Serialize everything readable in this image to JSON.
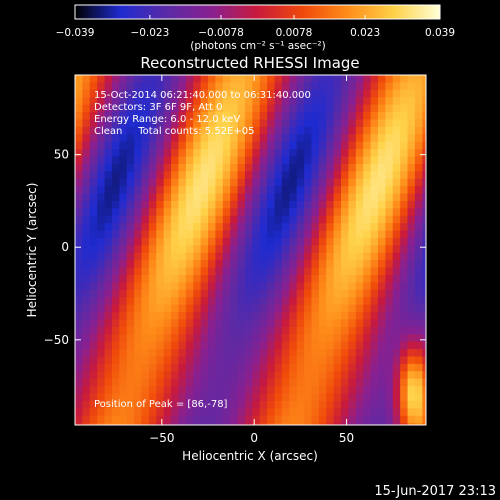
{
  "chart_data": {
    "type": "heatmap",
    "title": "Reconstructed RHESSI Image",
    "xlabel": "Heliocentric X (arcsec)",
    "ylabel": "Heliocentric Y (arcsec)",
    "xlim": [
      -97,
      93
    ],
    "ylim": [
      -96,
      93
    ],
    "x_ticks": [
      -50,
      0,
      50
    ],
    "y_ticks": [
      50,
      0,
      -50
    ],
    "x_tick_labels": [
      "−50",
      "0",
      "50"
    ],
    "y_tick_labels": [
      "50",
      "0",
      "−50"
    ],
    "colorbar": {
      "min": -0.039,
      "max": 0.039,
      "tick_values": [
        -0.039,
        -0.023,
        -0.0078,
        0.0078,
        0.023,
        0.039
      ],
      "tick_labels": [
        "−0.039",
        "−0.023",
        "−0.0078",
        "0.0078",
        "0.023",
        "0.039"
      ],
      "units": "(photons cm⁻² s⁻¹ asec⁻²)",
      "colormap": [
        "#000000",
        "#1e2bd0",
        "#5a2aa6",
        "#8a2090",
        "#c81a3c",
        "#f04a0a",
        "#ff8e1a",
        "#ffd24a",
        "#ffffd8"
      ]
    },
    "annotations": [
      "15-Oct-2014 06:21:40.000 to 06:31:40.000",
      "Detectors: 3F 6F 9F, Att 0",
      "Energy Range: 6.0 - 12.0 keV",
      "Clean     Total counts: 5.52E+05"
    ],
    "peak_label": "Position of Peak = [86,-78]",
    "peak_position": [
      86,
      -78
    ]
  },
  "footer": {
    "timestamp": "15-Jun-2017 23:13"
  }
}
